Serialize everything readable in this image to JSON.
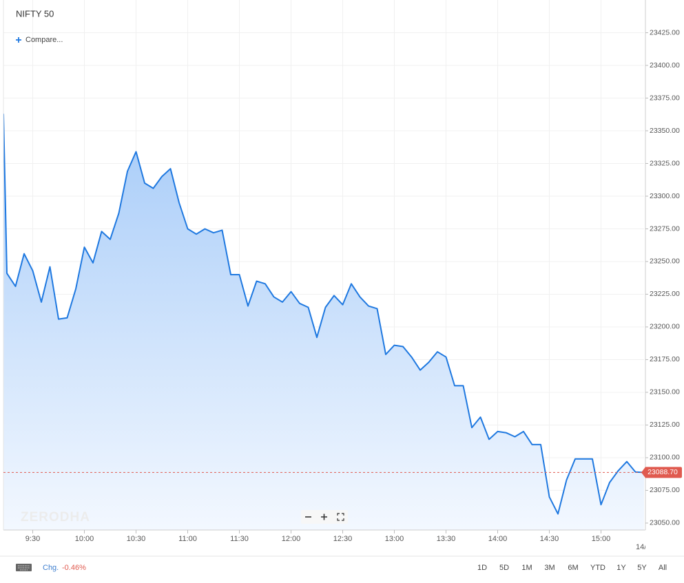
{
  "chart_data": {
    "type": "area",
    "title": "NIFTY 50",
    "compare_label": "Compare...",
    "watermark": "ZERODHA",
    "x": [
      "9:13",
      "9:15",
      "9:20",
      "9:25",
      "9:30",
      "9:35",
      "9:40",
      "9:45",
      "9:50",
      "9:55",
      "10:00",
      "10:05",
      "10:10",
      "10:15",
      "10:20",
      "10:25",
      "10:30",
      "10:35",
      "10:40",
      "10:45",
      "10:50",
      "10:55",
      "11:00",
      "11:05",
      "11:10",
      "11:15",
      "11:20",
      "11:25",
      "11:30",
      "11:35",
      "11:40",
      "11:45",
      "11:50",
      "11:55",
      "12:00",
      "12:05",
      "12:10",
      "12:15",
      "12:20",
      "12:25",
      "12:30",
      "12:35",
      "12:40",
      "12:45",
      "12:50",
      "12:55",
      "13:00",
      "13:05",
      "13:10",
      "13:15",
      "13:20",
      "13:25",
      "13:30",
      "13:35",
      "13:40",
      "13:45",
      "13:50",
      "13:55",
      "14:00",
      "14:05",
      "14:10",
      "14:15",
      "14:20",
      "14:25",
      "14:30",
      "14:35",
      "14:40",
      "14:45",
      "14:50",
      "14:55",
      "15:00",
      "15:05",
      "15:10",
      "15:15",
      "15:20",
      "15:25"
    ],
    "series": [
      {
        "name": "NIFTY 50",
        "color": "#1e78e0",
        "values": [
          23363,
          23241,
          23231,
          23256,
          23243,
          23219,
          23246,
          23206,
          23207,
          23229,
          23261,
          23249,
          23273,
          23267,
          23287,
          23319,
          23334,
          23310,
          23306,
          23315,
          23321,
          23295,
          23275,
          23271,
          23275,
          23272,
          23274,
          23240,
          23240,
          23216,
          23235,
          23233,
          23223,
          23219,
          23227,
          23218,
          23215,
          23192,
          23215,
          23224,
          23217,
          23233,
          23223,
          23216,
          23214,
          23179,
          23186,
          23185,
          23177,
          23167,
          23173,
          23181,
          23177,
          23155,
          23155,
          23123,
          23131,
          23114,
          23120,
          23119,
          23116,
          23120,
          23110,
          23110,
          23070,
          23057,
          23083,
          23099,
          23099,
          23099,
          23064,
          23081,
          23090,
          23097,
          23089,
          23088.7
        ]
      }
    ],
    "xlim": [
      "9:13",
      "15:25"
    ],
    "xticks": [
      "9:30",
      "10:00",
      "10:30",
      "11:00",
      "11:30",
      "12:00",
      "12:30",
      "13:00",
      "13:30",
      "14:00",
      "14:30",
      "15:00"
    ],
    "x_end_label": "14/",
    "ylim": [
      23044.7,
      23450
    ],
    "yticks": [
      {
        "value": 23050,
        "label": "23050.00"
      },
      {
        "value": 23075,
        "label": "23075.00"
      },
      {
        "value": 23100,
        "label": "23100.00"
      },
      {
        "value": 23125,
        "label": "23125.00"
      },
      {
        "value": 23150,
        "label": "23150.00"
      },
      {
        "value": 23175,
        "label": "23175.00"
      },
      {
        "value": 23200,
        "label": "23200.00"
      },
      {
        "value": 23225,
        "label": "23225.00"
      },
      {
        "value": 23250,
        "label": "23250.00"
      },
      {
        "value": 23275,
        "label": "23275.00"
      },
      {
        "value": 23300,
        "label": "23300.00"
      },
      {
        "value": 23325,
        "label": "23325.00"
      },
      {
        "value": 23350,
        "label": "23350.00"
      },
      {
        "value": 23375,
        "label": "23375.00"
      },
      {
        "value": 23400,
        "label": "23400.00"
      },
      {
        "value": 23425,
        "label": "23425.00"
      }
    ],
    "grid": true,
    "last_price": {
      "value": 23088.7,
      "label": "23088.70",
      "color": "#e05a4f"
    },
    "change_label": "Chg.",
    "change": "-0.46%",
    "ranges": [
      "1D",
      "5D",
      "1M",
      "3M",
      "6M",
      "YTD",
      "1Y",
      "5Y",
      "All"
    ]
  }
}
